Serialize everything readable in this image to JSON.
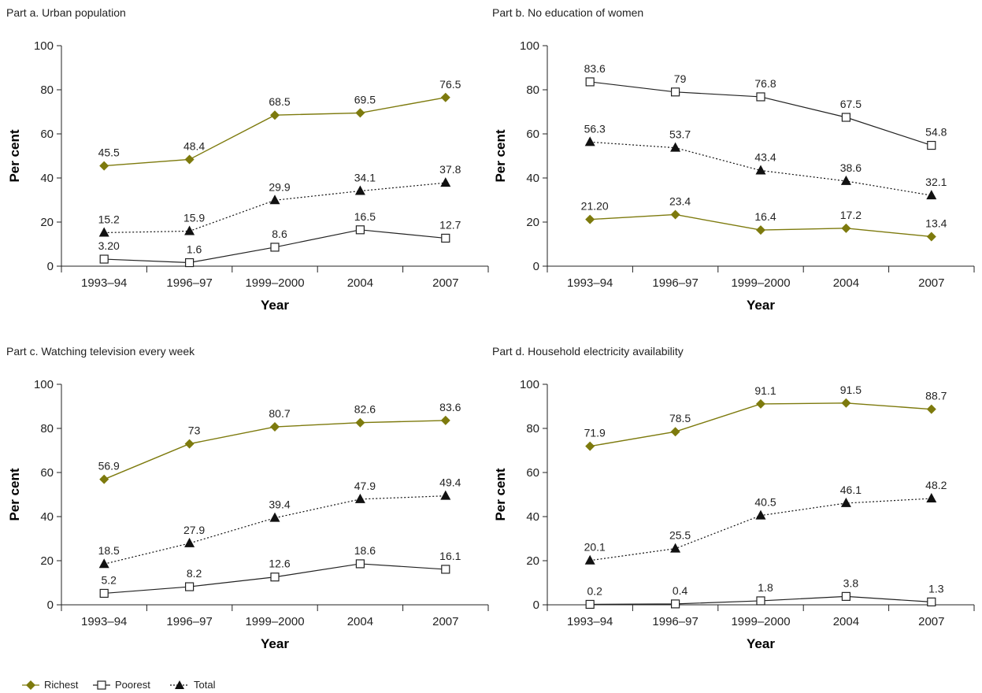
{
  "colors": {
    "richest": "#7d7a0d",
    "poorest": "#222222",
    "total": "#111111"
  },
  "legend": {
    "richest": "Richest",
    "poorest": "Poorest",
    "total": "Total"
  },
  "chart_data": [
    {
      "type": "line",
      "title": "Part a. Urban population",
      "xlabel": "Year",
      "ylabel": "Per cent",
      "ylim": [
        0,
        100
      ],
      "yticks": [
        "0",
        "20",
        "40",
        "60",
        "80",
        "100"
      ],
      "categories": [
        "1993–94",
        "1996–97",
        "1999–2000",
        "2004",
        "2007"
      ],
      "series": [
        {
          "name": "Richest",
          "values": [
            45.5,
            48.4,
            68.5,
            69.5,
            76.5
          ],
          "labels": [
            "45.5",
            "48.4",
            "68.5",
            "69.5",
            "76.5"
          ]
        },
        {
          "name": "Total",
          "values": [
            15.2,
            15.9,
            29.9,
            34.1,
            37.8
          ],
          "labels": [
            "15.2",
            "15.9",
            "29.9",
            "34.1",
            "37.8"
          ]
        },
        {
          "name": "Poorest",
          "values": [
            3.2,
            1.6,
            8.6,
            16.5,
            12.7
          ],
          "labels": [
            "3.20",
            "1.6",
            "8.6",
            "16.5",
            "12.7"
          ]
        }
      ]
    },
    {
      "type": "line",
      "title": "Part b. No education of women",
      "xlabel": "Year",
      "ylabel": "Per cent",
      "ylim": [
        0,
        100
      ],
      "yticks": [
        "0",
        "20",
        "40",
        "60",
        "80",
        "100"
      ],
      "categories": [
        "1993–94",
        "1996–97",
        "1999–2000",
        "2004",
        "2007"
      ],
      "series": [
        {
          "name": "Richest",
          "values": [
            21.2,
            23.4,
            16.4,
            17.2,
            13.4
          ],
          "labels": [
            "21.20",
            "23.4",
            "16.4",
            "17.2",
            "13.4"
          ]
        },
        {
          "name": "Total",
          "values": [
            56.3,
            53.7,
            43.4,
            38.6,
            32.1
          ],
          "labels": [
            "56.3",
            "53.7",
            "43.4",
            "38.6",
            "32.1"
          ]
        },
        {
          "name": "Poorest",
          "values": [
            83.6,
            79,
            76.8,
            67.5,
            54.8
          ],
          "labels": [
            "83.6",
            "79",
            "76.8",
            "67.5",
            "54.8"
          ]
        }
      ]
    },
    {
      "type": "line",
      "title": "Part c. Watching television every week",
      "xlabel": "Year",
      "ylabel": "Per cent",
      "ylim": [
        0,
        100
      ],
      "yticks": [
        "0",
        "20",
        "40",
        "60",
        "80",
        "100"
      ],
      "categories": [
        "1993–94",
        "1996–97",
        "1999–2000",
        "2004",
        "2007"
      ],
      "series": [
        {
          "name": "Richest",
          "values": [
            56.9,
            73,
            80.7,
            82.6,
            83.6
          ],
          "labels": [
            "56.9",
            "73",
            "80.7",
            "82.6",
            "83.6"
          ]
        },
        {
          "name": "Total",
          "values": [
            18.5,
            27.9,
            39.4,
            47.9,
            49.4
          ],
          "labels": [
            "18.5",
            "27.9",
            "39.4",
            "47.9",
            "49.4"
          ]
        },
        {
          "name": "Poorest",
          "values": [
            5.2,
            8.2,
            12.6,
            18.6,
            16.1
          ],
          "labels": [
            "5.2",
            "8.2",
            "12.6",
            "18.6",
            "16.1"
          ]
        }
      ]
    },
    {
      "type": "line",
      "title": "Part d. Household electricity availability",
      "xlabel": "Year",
      "ylabel": "Per cent",
      "ylim": [
        0,
        100
      ],
      "yticks": [
        "0",
        "20",
        "40",
        "60",
        "80",
        "100"
      ],
      "categories": [
        "1993–94",
        "1996–97",
        "1999–2000",
        "2004",
        "2007"
      ],
      "series": [
        {
          "name": "Richest",
          "values": [
            71.9,
            78.5,
            91.1,
            91.5,
            88.7
          ],
          "labels": [
            "71.9",
            "78.5",
            "91.1",
            "91.5",
            "88.7"
          ]
        },
        {
          "name": "Total",
          "values": [
            20.1,
            25.5,
            40.5,
            46.1,
            48.2
          ],
          "labels": [
            "20.1",
            "25.5",
            "40.5",
            "46.1",
            "48.2"
          ]
        },
        {
          "name": "Poorest",
          "values": [
            0.2,
            0.4,
            1.8,
            3.8,
            1.3
          ],
          "labels": [
            "0.2",
            "0.4",
            "1.8",
            "3.8",
            "1.3"
          ]
        }
      ]
    }
  ]
}
